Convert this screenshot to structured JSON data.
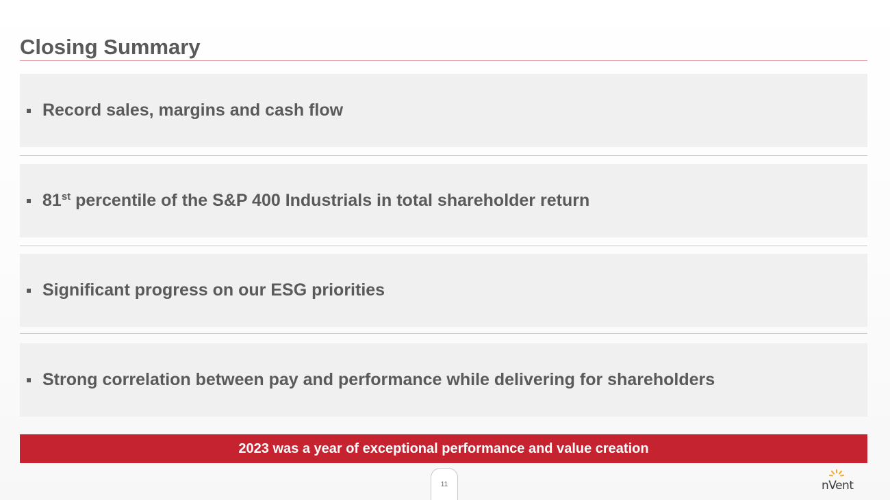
{
  "slide": {
    "title": "Closing Summary",
    "bullets": [
      {
        "pre": "Record sales, margins and cash flow",
        "sup": "",
        "post": ""
      },
      {
        "pre": "81",
        "sup": "st",
        "post": " percentile of the S&P 400 Industrials in total shareholder return"
      },
      {
        "pre": "Significant progress on our ESG priorities",
        "sup": "",
        "post": ""
      },
      {
        "pre": "Strong correlation between pay and performance while delivering for shareholders",
        "sup": "",
        "post": ""
      }
    ],
    "banner": "2023 was a year of exceptional performance and value creation",
    "page_number": "11",
    "logo_text": "nVent"
  },
  "colors": {
    "title_text": "#5a5a5a",
    "banner_bg": "#c4232f",
    "box_bg": "#f0f0f0",
    "logo_accent": "#f5a623"
  },
  "icons": {
    "bullet": "square-bullet-icon",
    "logo": "nvent-logo"
  }
}
